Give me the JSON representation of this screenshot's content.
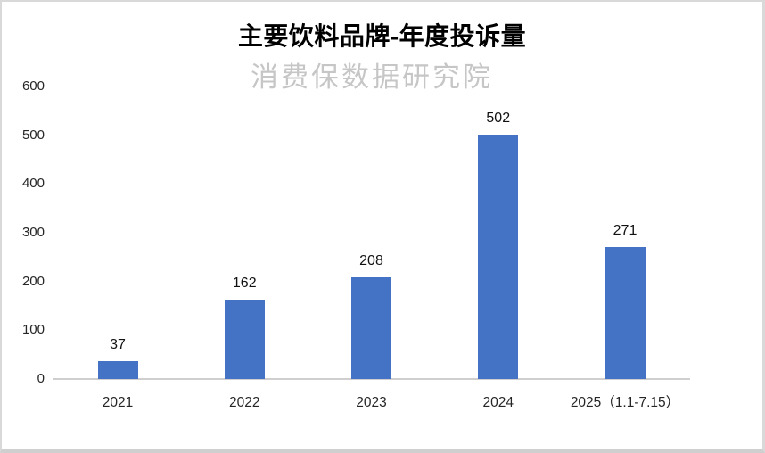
{
  "chart_data": {
    "type": "bar",
    "title": "主要饮料品牌-年度投诉量",
    "watermark": "消费保数据研究院",
    "categories": [
      "2021",
      "2022",
      "2023",
      "2024",
      "2025（1.1-7.15）"
    ],
    "values": [
      37,
      162,
      208,
      502,
      271
    ],
    "data_labels": [
      "37",
      "162",
      "208",
      "502",
      "271"
    ],
    "yticks": [
      0,
      100,
      200,
      300,
      400,
      500,
      600
    ],
    "ylim": [
      0,
      600
    ],
    "xlabel": "",
    "ylabel": "",
    "grid": false,
    "legend": false,
    "bar_color": "#4472C4"
  },
  "colors": {
    "bar": "#4472C4",
    "axis_line": "#d0cece",
    "frame_border": "#d9d9d9",
    "watermark_text": "#c6c6c6",
    "axis_text": "#262626",
    "title_text": "#000000"
  }
}
